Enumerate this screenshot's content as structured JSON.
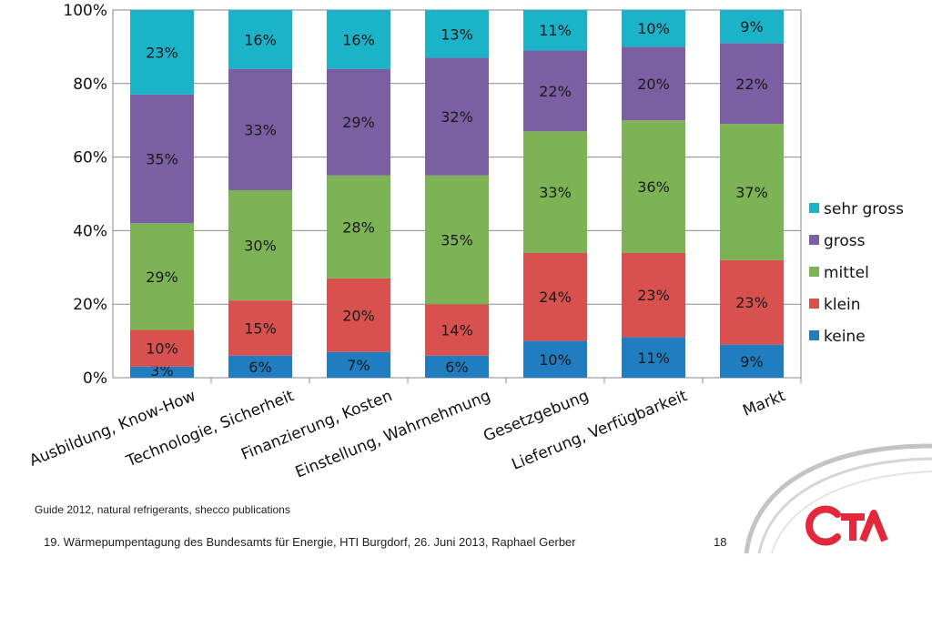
{
  "chart_data": {
    "type": "bar",
    "stacked": true,
    "percent": true,
    "categories": [
      "Ausbildung, Know-How",
      "Technologie, Sicherheit",
      "Finanzierung, Kosten",
      "Einstellung, Wahrnehmung",
      "Gesetzgebung",
      "Lieferung, Verfügbarkeit",
      "Markt"
    ],
    "series": [
      {
        "name": "keine",
        "color": "#1f7dc0",
        "values": [
          3,
          6,
          7,
          6,
          10,
          11,
          9
        ]
      },
      {
        "name": "klein",
        "color": "#d9514f",
        "values": [
          10,
          15,
          20,
          14,
          24,
          23,
          23
        ]
      },
      {
        "name": "mittel",
        "color": "#7cb354",
        "values": [
          29,
          30,
          28,
          35,
          33,
          36,
          37
        ]
      },
      {
        "name": "gross",
        "color": "#7a5fa3",
        "values": [
          35,
          33,
          29,
          32,
          22,
          20,
          22
        ]
      },
      {
        "name": "sehr gross",
        "color": "#1ab3c8",
        "values": [
          23,
          16,
          16,
          13,
          11,
          10,
          9
        ]
      }
    ],
    "legend_order": [
      "sehr gross",
      "gross",
      "mittel",
      "klein",
      "keine"
    ],
    "legend_position": "right",
    "ylim": [
      0,
      100
    ],
    "yticks": [
      "0%",
      "20%",
      "40%",
      "60%",
      "80%",
      "100%"
    ],
    "grid": true
  },
  "source_note": "Guide 2012, natural refrigerants, shecco publications",
  "footer_text": "19. Wärmepumpentagung des Bundesamts für Energie, HTI Burgdorf, 26. Juni 2013, Raphael Gerber",
  "page_number": "18",
  "logo": {
    "text": "CTA",
    "color": "#e2283a"
  }
}
